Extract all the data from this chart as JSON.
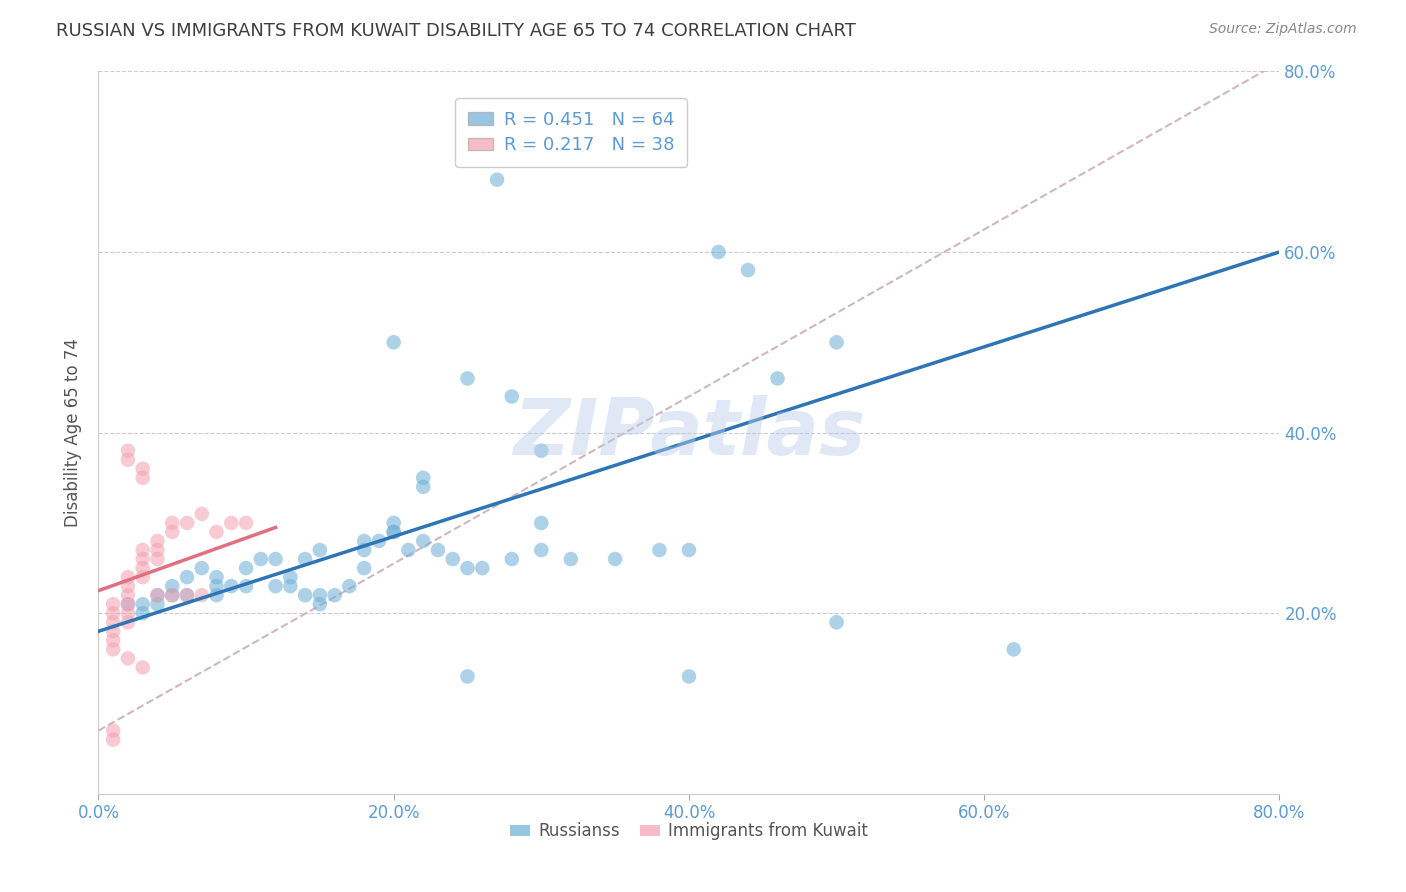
{
  "title": "RUSSIAN VS IMMIGRANTS FROM KUWAIT DISABILITY AGE 65 TO 74 CORRELATION CHART",
  "source": "Source: ZipAtlas.com",
  "ylabel_label": "Disability Age 65 to 74",
  "xlim": [
    0.0,
    0.8
  ],
  "ylim": [
    0.0,
    0.8
  ],
  "xticks": [
    0.0,
    0.2,
    0.4,
    0.6,
    0.8
  ],
  "yticks": [
    0.2,
    0.4,
    0.6,
    0.8
  ],
  "xticklabels": [
    "0.0%",
    "20.0%",
    "40.0%",
    "60.0%",
    "80.0%"
  ],
  "yticklabels": [
    "20.0%",
    "40.0%",
    "60.0%",
    "80.0%"
  ],
  "watermark": "ZIPatlas",
  "blue_scatter_x": [
    0.38,
    0.27,
    0.42,
    0.44,
    0.5,
    0.46,
    0.2,
    0.25,
    0.28,
    0.3,
    0.3,
    0.22,
    0.22,
    0.2,
    0.18,
    0.15,
    0.14,
    0.12,
    0.1,
    0.08,
    0.06,
    0.05,
    0.04,
    0.03,
    0.02,
    0.03,
    0.04,
    0.05,
    0.06,
    0.07,
    0.08,
    0.08,
    0.09,
    0.1,
    0.11,
    0.12,
    0.13,
    0.13,
    0.14,
    0.15,
    0.15,
    0.16,
    0.17,
    0.18,
    0.18,
    0.19,
    0.2,
    0.2,
    0.21,
    0.22,
    0.23,
    0.24,
    0.25,
    0.26,
    0.28,
    0.3,
    0.32,
    0.35,
    0.38,
    0.4,
    0.62,
    0.4,
    0.5,
    0.25
  ],
  "blue_scatter_y": [
    0.74,
    0.68,
    0.6,
    0.58,
    0.5,
    0.46,
    0.5,
    0.46,
    0.44,
    0.38,
    0.3,
    0.35,
    0.34,
    0.29,
    0.28,
    0.27,
    0.26,
    0.23,
    0.23,
    0.22,
    0.22,
    0.22,
    0.21,
    0.21,
    0.21,
    0.2,
    0.22,
    0.23,
    0.24,
    0.25,
    0.24,
    0.23,
    0.23,
    0.25,
    0.26,
    0.26,
    0.24,
    0.23,
    0.22,
    0.22,
    0.21,
    0.22,
    0.23,
    0.25,
    0.27,
    0.28,
    0.3,
    0.29,
    0.27,
    0.28,
    0.27,
    0.26,
    0.25,
    0.25,
    0.26,
    0.27,
    0.26,
    0.26,
    0.27,
    0.27,
    0.16,
    0.13,
    0.19,
    0.13
  ],
  "pink_scatter_x": [
    0.01,
    0.01,
    0.01,
    0.01,
    0.01,
    0.01,
    0.02,
    0.02,
    0.02,
    0.02,
    0.02,
    0.02,
    0.03,
    0.03,
    0.03,
    0.03,
    0.04,
    0.04,
    0.04,
    0.05,
    0.05,
    0.06,
    0.07,
    0.08,
    0.09,
    0.1,
    0.02,
    0.02,
    0.03,
    0.03,
    0.01,
    0.01,
    0.02,
    0.03,
    0.04,
    0.05,
    0.06,
    0.07
  ],
  "pink_scatter_y": [
    0.21,
    0.2,
    0.19,
    0.18,
    0.17,
    0.16,
    0.24,
    0.23,
    0.22,
    0.21,
    0.2,
    0.19,
    0.27,
    0.26,
    0.25,
    0.24,
    0.28,
    0.27,
    0.26,
    0.29,
    0.3,
    0.3,
    0.31,
    0.29,
    0.3,
    0.3,
    0.38,
    0.37,
    0.36,
    0.35,
    0.07,
    0.06,
    0.15,
    0.14,
    0.22,
    0.22,
    0.22,
    0.22
  ],
  "blue_line_y0": 0.18,
  "blue_line_y1": 0.6,
  "pink_line_x0": 0.0,
  "pink_line_x1": 0.12,
  "pink_line_y0": 0.225,
  "pink_line_y1": 0.295,
  "dash_line_x0": 0.0,
  "dash_line_x1": 0.8,
  "dash_line_y0": 0.07,
  "dash_line_y1": 0.81,
  "blue_color": "#6baed6",
  "pink_color": "#f4a0b0",
  "blue_line_color": "#2e75b6",
  "pink_line_color": "#e07080",
  "dash_line_color": "#c8aab4",
  "bg_color": "#ffffff",
  "grid_color": "#cccccc",
  "title_color": "#3f3f3f",
  "tick_color": "#5b9bd5",
  "ylabel_color": "#555555"
}
